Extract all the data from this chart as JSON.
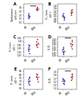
{
  "panels": [
    {
      "label": "A",
      "ylabel": "Conductance\n(mS/cm²)",
      "ylim": [
        0.8,
        3.5
      ],
      "yticks": [
        1.0,
        1.5,
        2.0,
        2.5,
        3.0
      ],
      "group1": [
        1.55,
        1.75,
        1.9,
        2.05,
        2.2,
        1.65,
        1.85
      ],
      "group2": [
        2.6,
        2.8,
        2.9,
        3.0,
        3.1,
        2.7
      ],
      "sig": true
    },
    {
      "label": "B",
      "ylabel": "Pₙₐ (cm/s\n×10⁻⁴)",
      "ylim": [
        0.42,
        1.95
      ],
      "yticks": [
        0.6,
        0.8,
        1.0,
        1.2,
        1.4,
        1.6,
        1.8
      ],
      "group1": [
        0.75,
        0.85,
        0.95,
        1.0,
        1.05,
        1.1,
        1.2
      ],
      "group2": [
        1.1,
        1.2,
        1.3,
        1.35,
        1.45,
        1.55
      ],
      "sig": false
    },
    {
      "label": "C",
      "ylabel": "Pₖₗ (cm/s\n×10⁻⁴)",
      "ylim": [
        1.12,
        1.68
      ],
      "yticks": [
        1.15,
        1.25,
        1.35,
        1.45,
        1.55,
        1.65
      ],
      "group1": [
        1.22,
        1.27,
        1.32,
        1.35,
        1.38,
        1.42,
        1.46
      ],
      "group2": [
        1.38,
        1.42,
        1.46,
        1.5,
        1.55,
        1.6
      ],
      "sig": false
    },
    {
      "label": "D",
      "ylabel": "Pₙₐ/Pₖₗ",
      "ylim": [
        1.18,
        1.55
      ],
      "yticks": [
        1.2,
        1.25,
        1.3,
        1.35,
        1.4,
        1.45,
        1.5
      ],
      "group1": [
        1.22,
        1.25,
        1.27,
        1.29,
        1.31,
        1.33,
        1.35
      ],
      "group2": [
        1.33,
        1.37,
        1.4,
        1.43,
        1.46,
        1.49
      ],
      "sig": true
    },
    {
      "label": "E",
      "ylabel": "Pₖ (cm/s\n×10⁻⁴)",
      "ylim": [
        5.8,
        8.8
      ],
      "yticks": [
        6.0,
        6.5,
        7.0,
        7.5,
        8.0,
        8.5
      ],
      "group1": [
        6.5,
        6.7,
        6.9,
        7.1,
        7.3,
        7.5,
        7.7
      ],
      "group2": [
        7.0,
        7.3,
        7.5,
        7.8,
        8.0,
        8.2
      ],
      "sig": false
    },
    {
      "label": "F",
      "ylabel": "Pₙₐ/Pₖₗ",
      "ylim": [
        1.05,
        2.25
      ],
      "yticks": [
        1.1,
        1.3,
        1.5,
        1.7,
        1.9,
        2.1
      ],
      "group1": [
        1.35,
        1.42,
        1.5,
        1.55,
        1.6,
        1.65,
        1.72
      ],
      "group2": [
        1.6,
        1.7,
        1.78,
        1.85,
        1.92,
        2.0
      ],
      "sig": true
    }
  ],
  "group_labels": [
    "WT",
    "CFKO"
  ],
  "color1": "#3333bb",
  "color2": "#cc2222",
  "mean_color": "#777777",
  "dot_size": 1.5,
  "background": "#ffffff"
}
